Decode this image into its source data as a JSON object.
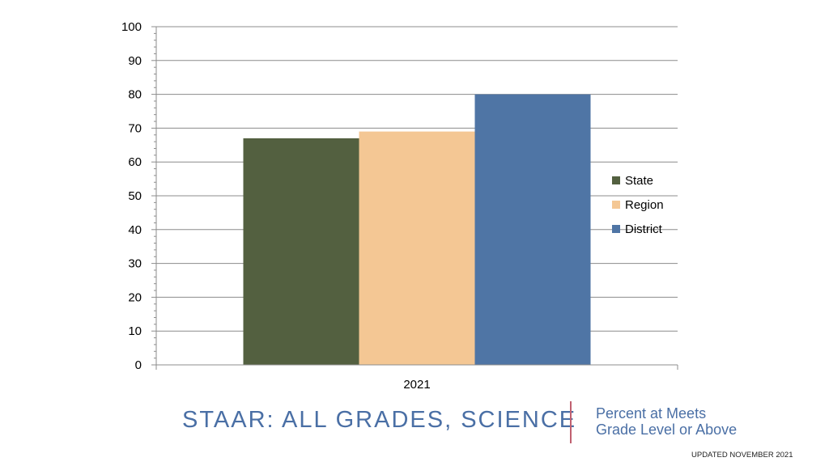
{
  "chart_data": {
    "type": "bar",
    "categories": [
      "2021"
    ],
    "series": [
      {
        "name": "State",
        "values": [
          67
        ],
        "color": "#536040"
      },
      {
        "name": "Region",
        "values": [
          69
        ],
        "color": "#f4c794"
      },
      {
        "name": "District",
        "values": [
          80
        ],
        "color": "#4f75a5"
      }
    ],
    "ylim": [
      0,
      100
    ],
    "yticks": [
      0,
      10,
      20,
      30,
      40,
      50,
      60,
      70,
      80,
      90,
      100
    ],
    "title": "",
    "xlabel": "",
    "ylabel": "",
    "legend_position": "right"
  },
  "footer": {
    "title": "STAAR:  ALL GRADES, SCIENCE",
    "subtitle_line1": "Percent at Meets",
    "subtitle_line2": "Grade Level or Above",
    "updated": "UPDATED NOVEMBER 2021"
  },
  "colors": {
    "accent": "#4a6fa5",
    "divider": "#c06070"
  }
}
